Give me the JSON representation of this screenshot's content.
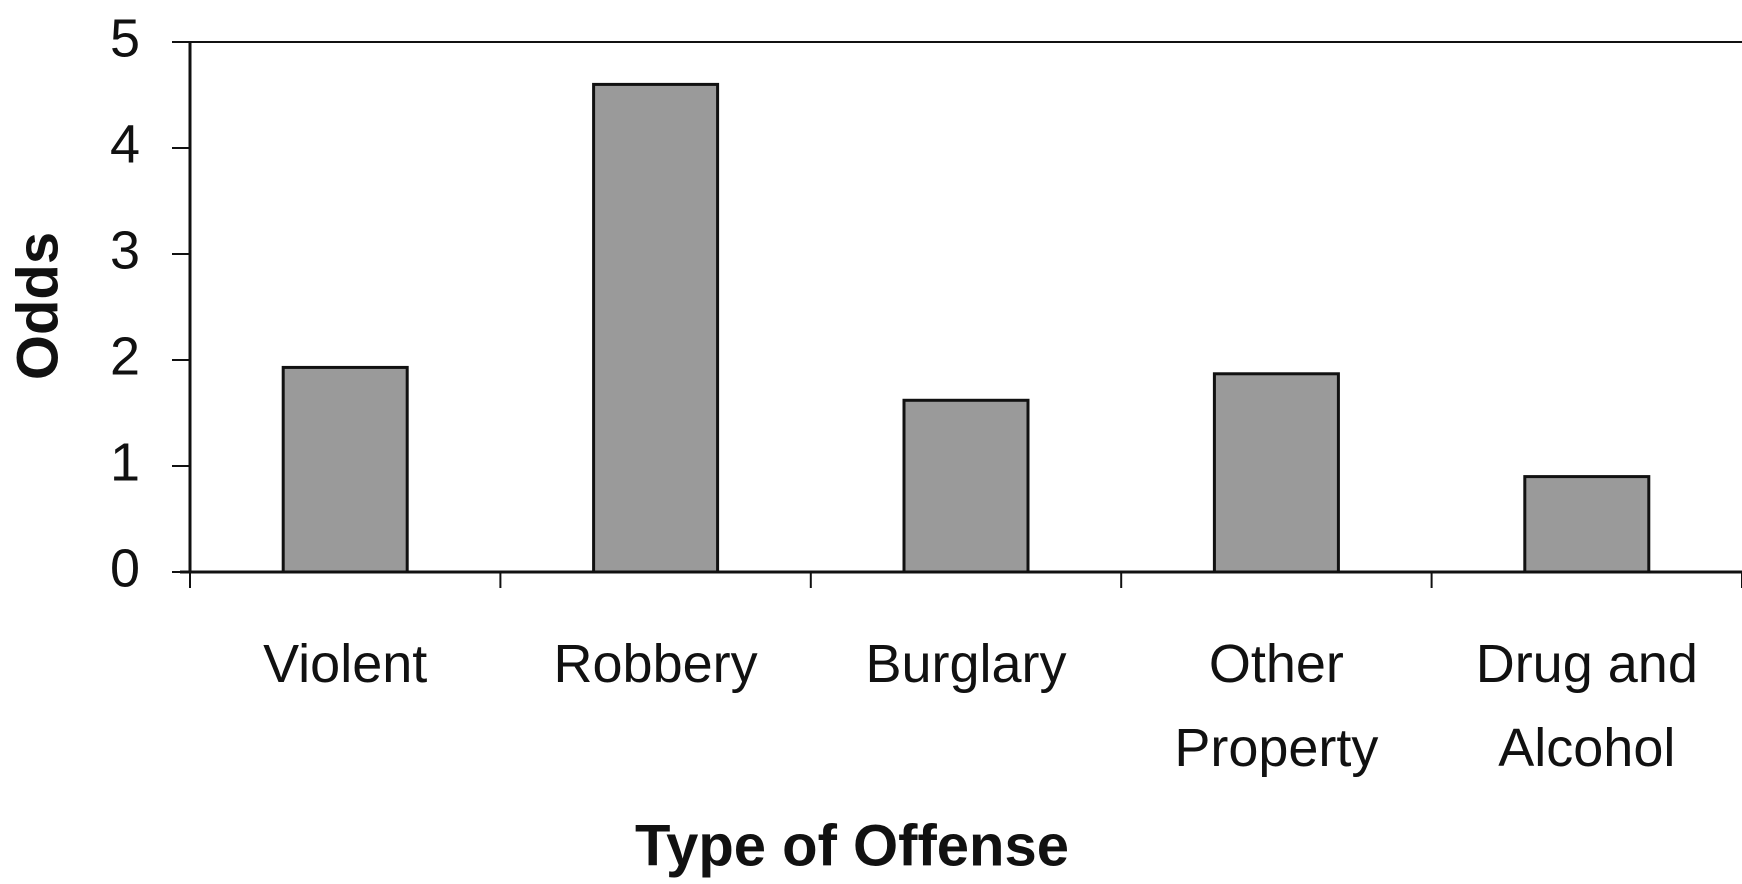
{
  "chart_data": {
    "type": "bar",
    "x_label": "Type of Offense",
    "y_label": "Odds",
    "categories": [
      "Violent",
      "Robbery",
      "Burglary",
      "Other Property",
      "Drug and Alcohol"
    ],
    "values": [
      1.93,
      4.6,
      1.62,
      1.87,
      0.9
    ],
    "color": "#9a9a9a",
    "ylim": [
      0,
      5
    ],
    "yticks": [
      0,
      1,
      2,
      3,
      4,
      5
    ],
    "grid": false
  }
}
